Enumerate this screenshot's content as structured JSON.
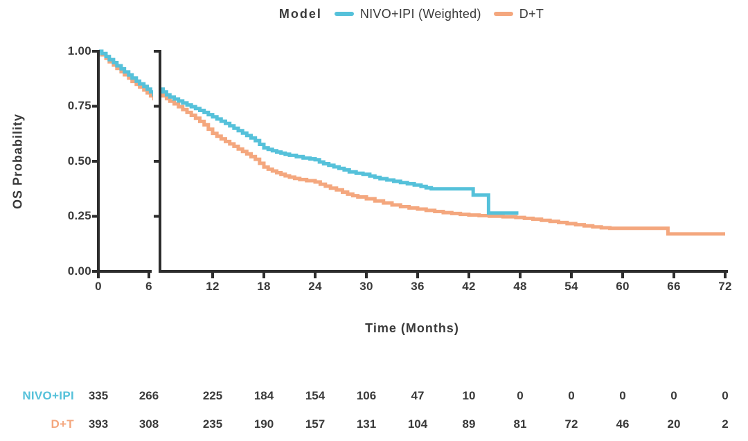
{
  "legend": {
    "title": "Model",
    "items": [
      {
        "label": "NIVO+IPI (Weighted)",
        "color": "#55c1da"
      },
      {
        "label": "D+T",
        "color": "#f4a77e"
      }
    ]
  },
  "chart_data": {
    "type": "line",
    "subtype": "kaplan-meier-step",
    "title": "",
    "xlabel": "Time (Months)",
    "ylabel": "OS Probability",
    "x_ticks": [
      "0",
      "6",
      "12",
      "18",
      "24",
      "30",
      "36",
      "42",
      "48",
      "54",
      "60",
      "66",
      "72"
    ],
    "y_ticks": [
      "1.00",
      "0.75",
      "0.50",
      "0.25",
      "0.00"
    ],
    "xlim": [
      0,
      72
    ],
    "ylim": [
      0.0,
      1.0
    ],
    "grid": false,
    "legend_position": "top-center",
    "axis_break": {
      "x_after_month": 6
    },
    "series": [
      {
        "name": "NIVO+IPI (Weighted)",
        "color": "#55c1da",
        "points": [
          [
            0,
            1.0
          ],
          [
            0.4,
            0.99
          ],
          [
            0.9,
            0.976
          ],
          [
            1.3,
            0.962
          ],
          [
            1.8,
            0.948
          ],
          [
            2.2,
            0.934
          ],
          [
            2.7,
            0.92
          ],
          [
            3.1,
            0.906
          ],
          [
            3.6,
            0.892
          ],
          [
            4,
            0.878
          ],
          [
            4.5,
            0.864
          ],
          [
            4.9,
            0.852
          ],
          [
            5.4,
            0.84
          ],
          [
            5.8,
            0.828
          ],
          [
            6.2,
            0.815
          ],
          [
            6.6,
            0.802
          ],
          [
            7,
            0.792
          ],
          [
            7.5,
            0.783
          ],
          [
            8,
            0.774
          ],
          [
            8.5,
            0.765
          ],
          [
            9,
            0.756
          ],
          [
            9.5,
            0.748
          ],
          [
            10,
            0.74
          ],
          [
            10.5,
            0.731
          ],
          [
            11,
            0.722
          ],
          [
            11.5,
            0.712
          ],
          [
            12,
            0.702
          ],
          [
            12.5,
            0.692
          ],
          [
            13,
            0.682
          ],
          [
            13.5,
            0.672
          ],
          [
            14,
            0.661
          ],
          [
            14.5,
            0.65
          ],
          [
            15,
            0.639
          ],
          [
            15.5,
            0.628
          ],
          [
            16,
            0.617
          ],
          [
            16.5,
            0.606
          ],
          [
            17,
            0.594
          ],
          [
            17.5,
            0.577
          ],
          [
            18,
            0.561
          ],
          [
            18.5,
            0.554
          ],
          [
            19,
            0.548
          ],
          [
            19.5,
            0.542
          ],
          [
            20,
            0.537
          ],
          [
            20.5,
            0.532
          ],
          [
            21,
            0.527
          ],
          [
            21.8,
            0.521
          ],
          [
            22.6,
            0.515
          ],
          [
            23.4,
            0.511
          ],
          [
            24,
            0.507
          ],
          [
            24.5,
            0.497
          ],
          [
            25,
            0.489
          ],
          [
            25.6,
            0.482
          ],
          [
            26.2,
            0.475
          ],
          [
            26.8,
            0.468
          ],
          [
            27.4,
            0.461
          ],
          [
            28,
            0.452
          ],
          [
            28.8,
            0.446
          ],
          [
            29.6,
            0.441
          ],
          [
            30.4,
            0.433
          ],
          [
            31,
            0.427
          ],
          [
            31.6,
            0.421
          ],
          [
            32.4,
            0.415
          ],
          [
            33.2,
            0.409
          ],
          [
            34,
            0.403
          ],
          [
            34.8,
            0.398
          ],
          [
            35.6,
            0.392
          ],
          [
            36.4,
            0.386
          ],
          [
            37,
            0.38
          ],
          [
            37.6,
            0.375
          ],
          [
            42.5,
            0.347
          ],
          [
            44.3,
            0.265
          ],
          [
            47.8,
            0.265
          ]
        ]
      },
      {
        "name": "D+T",
        "color": "#f4a77e",
        "points": [
          [
            0,
            1.0
          ],
          [
            0.4,
            0.984
          ],
          [
            0.9,
            0.968
          ],
          [
            1.3,
            0.952
          ],
          [
            1.8,
            0.937
          ],
          [
            2.2,
            0.922
          ],
          [
            2.7,
            0.907
          ],
          [
            3.1,
            0.893
          ],
          [
            3.6,
            0.878
          ],
          [
            4,
            0.863
          ],
          [
            4.5,
            0.85
          ],
          [
            4.9,
            0.837
          ],
          [
            5.4,
            0.824
          ],
          [
            5.8,
            0.811
          ],
          [
            6.2,
            0.798
          ],
          [
            6.6,
            0.785
          ],
          [
            7,
            0.773
          ],
          [
            7.5,
            0.761
          ],
          [
            8,
            0.748
          ],
          [
            8.5,
            0.735
          ],
          [
            9,
            0.722
          ],
          [
            9.5,
            0.709
          ],
          [
            10,
            0.696
          ],
          [
            10.5,
            0.681
          ],
          [
            11,
            0.666
          ],
          [
            11.5,
            0.646
          ],
          [
            12,
            0.627
          ],
          [
            12.5,
            0.614
          ],
          [
            13,
            0.602
          ],
          [
            13.5,
            0.59
          ],
          [
            14,
            0.579
          ],
          [
            14.5,
            0.568
          ],
          [
            15,
            0.556
          ],
          [
            15.5,
            0.545
          ],
          [
            16,
            0.534
          ],
          [
            16.5,
            0.521
          ],
          [
            17,
            0.509
          ],
          [
            17.5,
            0.491
          ],
          [
            18,
            0.474
          ],
          [
            18.5,
            0.464
          ],
          [
            19,
            0.456
          ],
          [
            19.5,
            0.448
          ],
          [
            20,
            0.441
          ],
          [
            20.5,
            0.434
          ],
          [
            21,
            0.428
          ],
          [
            21.6,
            0.422
          ],
          [
            22.2,
            0.417
          ],
          [
            23,
            0.412
          ],
          [
            24,
            0.406
          ],
          [
            24.6,
            0.396
          ],
          [
            25.2,
            0.387
          ],
          [
            25.8,
            0.378
          ],
          [
            26.5,
            0.37
          ],
          [
            27.2,
            0.36
          ],
          [
            27.8,
            0.351
          ],
          [
            28.4,
            0.344
          ],
          [
            29,
            0.338
          ],
          [
            30,
            0.33
          ],
          [
            31,
            0.32
          ],
          [
            32,
            0.311
          ],
          [
            33,
            0.302
          ],
          [
            34,
            0.294
          ],
          [
            35,
            0.288
          ],
          [
            36,
            0.283
          ],
          [
            37,
            0.277
          ],
          [
            38,
            0.272
          ],
          [
            39,
            0.267
          ],
          [
            40,
            0.263
          ],
          [
            41,
            0.259
          ],
          [
            42,
            0.256
          ],
          [
            43.2,
            0.253
          ],
          [
            44.4,
            0.251
          ],
          [
            46,
            0.248
          ],
          [
            47.5,
            0.245
          ],
          [
            48.5,
            0.241
          ],
          [
            49.5,
            0.237
          ],
          [
            50.5,
            0.232
          ],
          [
            51.5,
            0.227
          ],
          [
            52.5,
            0.222
          ],
          [
            53.5,
            0.217
          ],
          [
            54.5,
            0.212
          ],
          [
            55.5,
            0.207
          ],
          [
            56.5,
            0.202
          ],
          [
            57.5,
            0.198
          ],
          [
            58.5,
            0.196
          ],
          [
            65.3,
            0.17
          ],
          [
            72,
            0.17
          ]
        ]
      }
    ]
  },
  "risk_table": {
    "rows": [
      {
        "label": "NIVO+IPI",
        "color": "#55c1da",
        "values": [
          "335",
          "266",
          "225",
          "184",
          "154",
          "106",
          "47",
          "10",
          "0",
          "0",
          "0",
          "0",
          "0"
        ]
      },
      {
        "label": "D+T",
        "color": "#f4a77e",
        "values": [
          "393",
          "308",
          "235",
          "190",
          "157",
          "131",
          "104",
          "89",
          "81",
          "72",
          "46",
          "20",
          "2"
        ]
      }
    ]
  },
  "colors": {
    "nivo": "#55c1da",
    "dt": "#f4a77e",
    "axis": "#2d2d2d",
    "text": "#3a3a3a"
  }
}
